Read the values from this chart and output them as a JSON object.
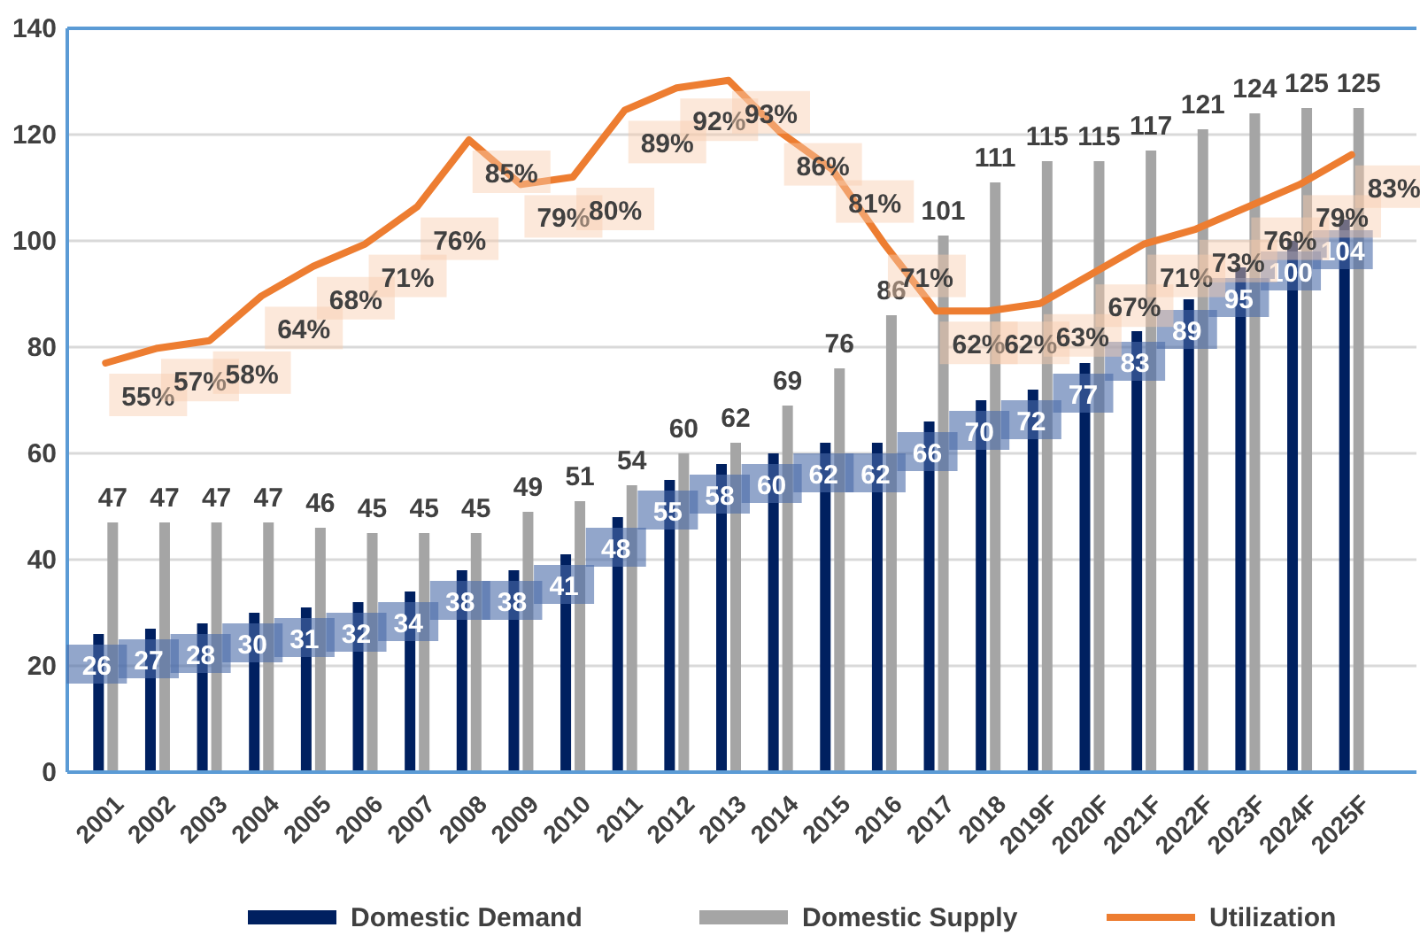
{
  "chart_data": {
    "type": "bar",
    "categories": [
      "2001",
      "2002",
      "2003",
      "2004",
      "2005",
      "2006",
      "2007",
      "2008",
      "2009",
      "2010",
      "2011",
      "2012",
      "2013",
      "2014",
      "2015",
      "2016",
      "2017",
      "2018",
      "2019F",
      "2020F",
      "2021F",
      "2022F",
      "2023F",
      "2024F",
      "2025F"
    ],
    "series": [
      {
        "name": "Domestic Demand",
        "color": "#002060",
        "values": [
          26,
          27,
          28,
          30,
          31,
          32,
          34,
          38,
          38,
          41,
          48,
          55,
          58,
          60,
          62,
          62,
          66,
          70,
          72,
          77,
          83,
          89,
          95,
          100,
          104
        ]
      },
      {
        "name": "Domestic Supply",
        "color": "#a5a5a5",
        "values": [
          47,
          47,
          47,
          47,
          46,
          45,
          45,
          45,
          49,
          51,
          54,
          60,
          62,
          69,
          76,
          86,
          101,
          111,
          115,
          115,
          117,
          121,
          124,
          125,
          125
        ]
      },
      {
        "name": "Utilization",
        "type": "line",
        "axis": "y2",
        "color": "#ed7d31",
        "values": [
          55,
          57,
          58,
          64,
          68,
          71,
          76,
          85,
          79,
          80,
          89,
          92,
          93,
          86,
          81,
          71,
          62,
          62,
          63,
          67,
          71,
          73,
          76,
          79,
          83
        ],
        "value_labels": [
          "55%",
          "57%",
          "58%",
          "64%",
          "68%",
          "71%",
          "76%",
          "85%",
          "79%",
          "80%",
          "89%",
          "92%",
          "93%",
          "86%",
          "81%",
          "71%",
          "62%",
          "62%",
          "63%",
          "67%",
          "71%",
          "73%",
          "76%",
          "79%",
          "83%"
        ]
      }
    ],
    "ylim": [
      0,
      140
    ],
    "yticks": [
      0,
      20,
      40,
      60,
      80,
      100,
      120,
      140
    ],
    "y2lim": [
      0,
      100
    ],
    "data_labels": true,
    "grid": "y",
    "legend": "bottom",
    "marker": "none",
    "line_style": "solid"
  }
}
